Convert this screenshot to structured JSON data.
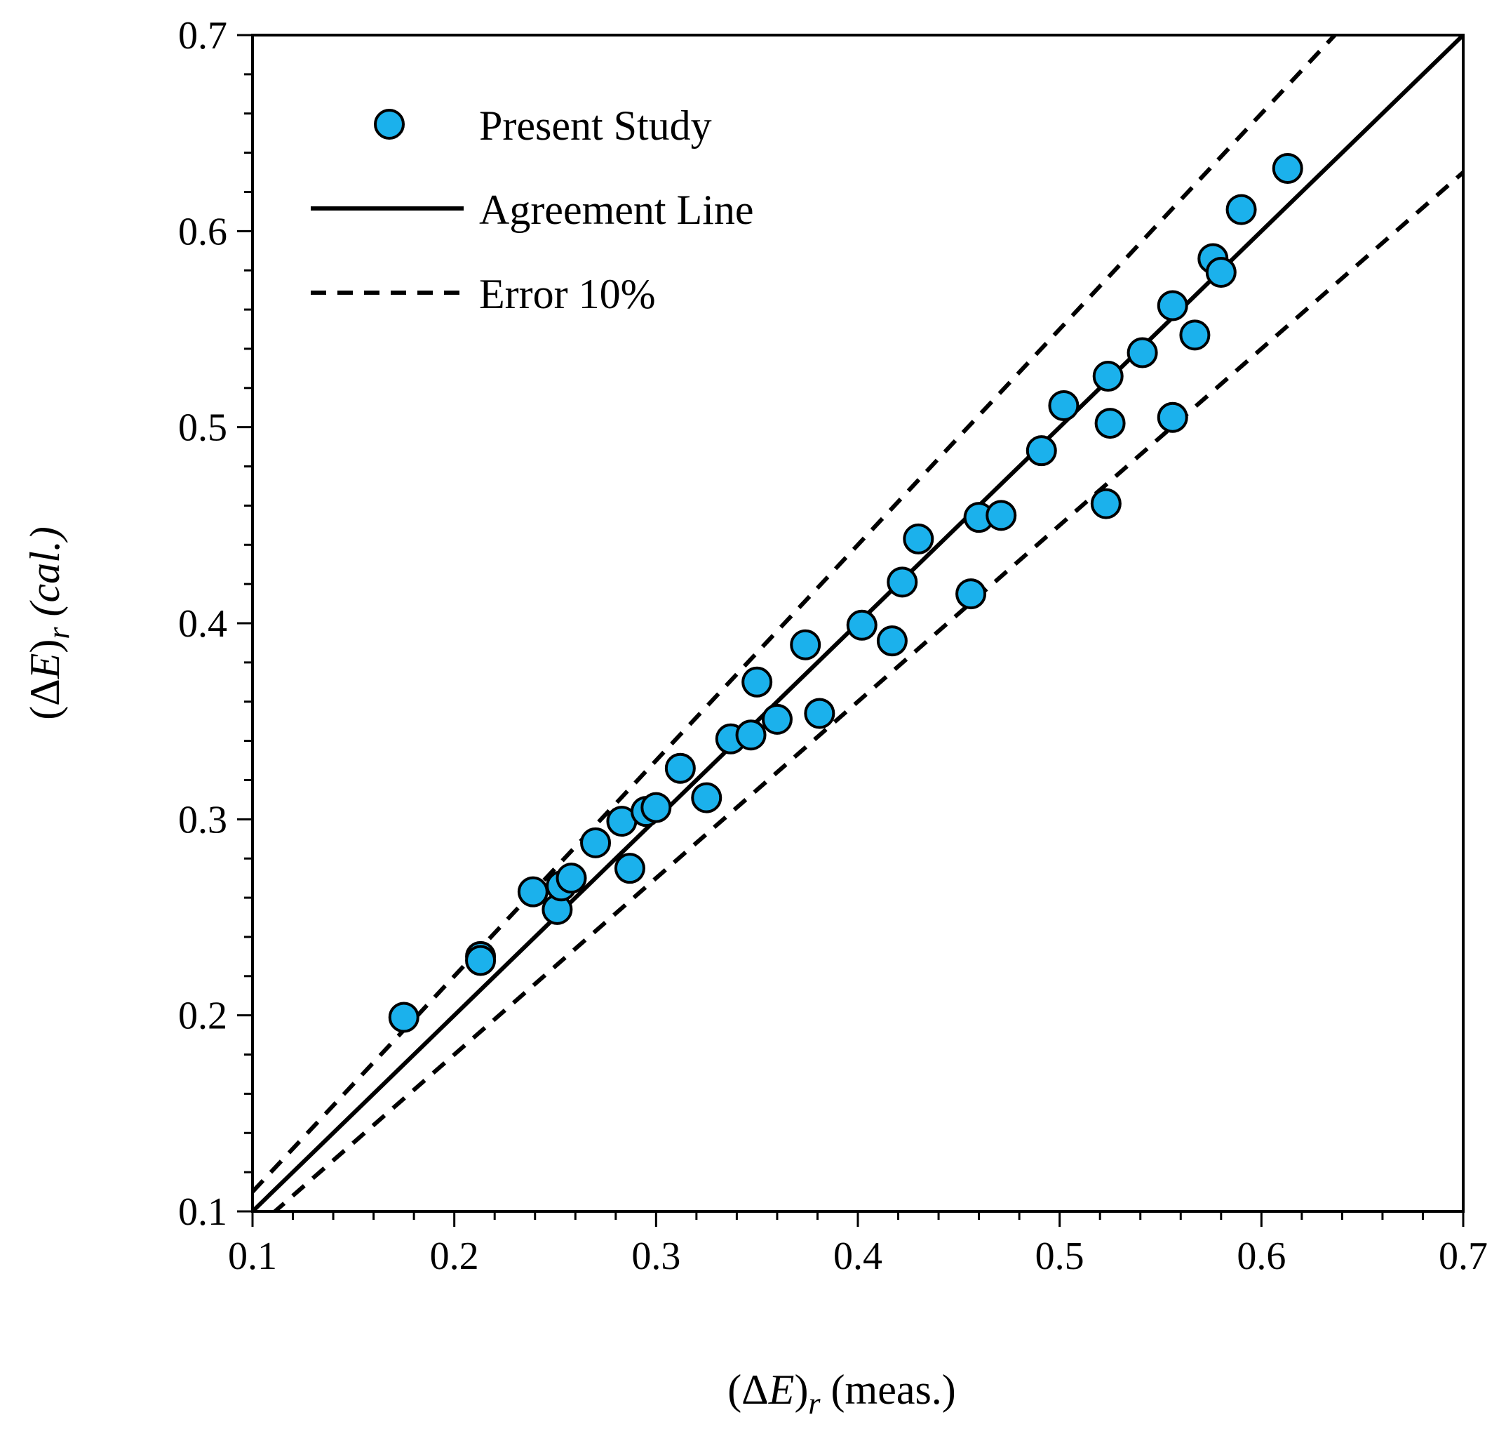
{
  "chart_data": {
    "type": "scatter",
    "title": "",
    "xlabel": {
      "prefix": "(Δ",
      "var": "E",
      "close": ")",
      "sub": "r",
      "suffix": " (meas.)"
    },
    "ylabel": {
      "prefix": "(Δ",
      "var": "E",
      "close": ")",
      "sub": "r",
      "suffix": " (cal.)"
    },
    "xlim": [
      0.1,
      0.7
    ],
    "ylim": [
      0.1,
      0.7
    ],
    "major_ticks": [
      0.1,
      0.2,
      0.3,
      0.4,
      0.5,
      0.6,
      0.7
    ],
    "tick_labels": [
      "0.1",
      "0.2",
      "0.3",
      "0.4",
      "0.5",
      "0.6",
      "0.7"
    ],
    "minor_tick_step": 0.02,
    "grid": false,
    "legend_position": "top-left",
    "marker_color": "#1BB1EC",
    "series": [
      {
        "name": "Present Study",
        "kind": "points",
        "x": [
          0.175,
          0.213,
          0.213,
          0.239,
          0.251,
          0.253,
          0.258,
          0.27,
          0.283,
          0.287,
          0.295,
          0.3,
          0.312,
          0.325,
          0.337,
          0.347,
          0.35,
          0.36,
          0.374,
          0.381,
          0.402,
          0.417,
          0.422,
          0.43,
          0.456,
          0.46,
          0.471,
          0.491,
          0.502,
          0.523,
          0.524,
          0.525,
          0.541,
          0.556,
          0.556,
          0.567,
          0.576,
          0.58,
          0.59,
          0.613
        ],
        "y": [
          0.199,
          0.23,
          0.228,
          0.263,
          0.254,
          0.266,
          0.27,
          0.288,
          0.299,
          0.275,
          0.304,
          0.306,
          0.326,
          0.311,
          0.341,
          0.343,
          0.37,
          0.351,
          0.389,
          0.354,
          0.399,
          0.391,
          0.421,
          0.443,
          0.415,
          0.454,
          0.455,
          0.488,
          0.511,
          0.461,
          0.526,
          0.502,
          0.538,
          0.562,
          0.505,
          0.547,
          0.586,
          0.579,
          0.611,
          0.632
        ]
      },
      {
        "name": "Agreement Line",
        "kind": "line",
        "slope": 1.0,
        "style": "solid"
      },
      {
        "name": "Error 10%",
        "kind": "lines",
        "slopes": [
          1.1,
          0.9
        ],
        "style": "dashed"
      }
    ]
  }
}
